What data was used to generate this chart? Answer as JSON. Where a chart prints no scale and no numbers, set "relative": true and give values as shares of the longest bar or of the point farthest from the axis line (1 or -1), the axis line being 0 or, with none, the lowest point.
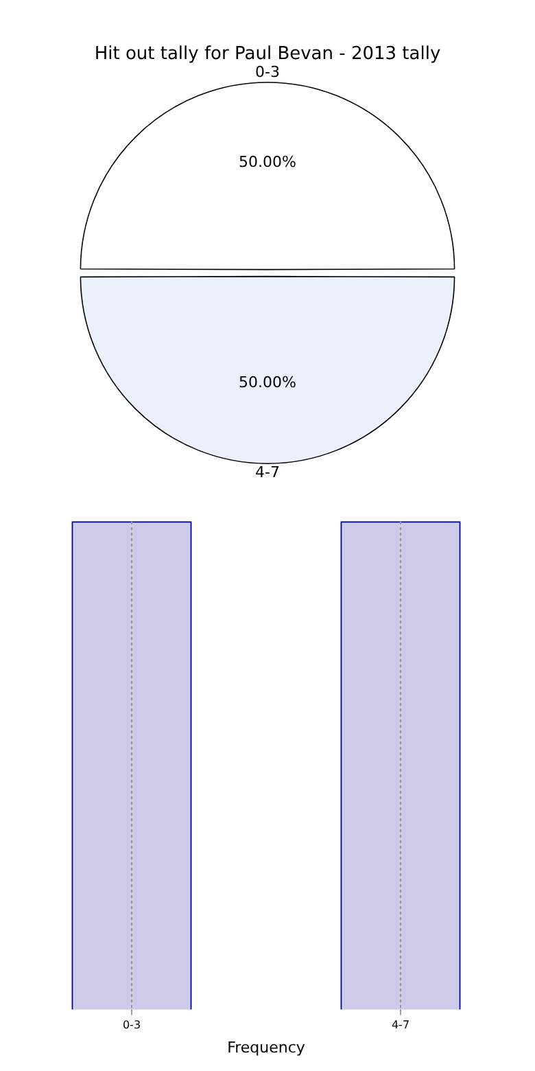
{
  "chart_data": [
    {
      "type": "pie",
      "title": "Hit out tally for Paul Bevan - 2013 tally",
      "categories": [
        "0-3",
        "4-7"
      ],
      "values": [
        50,
        50
      ],
      "value_labels": [
        "50.00%",
        "50.00%"
      ],
      "colors": [
        "#ffffff",
        "#ebf0fc"
      ],
      "legend": false
    },
    {
      "type": "bar",
      "categories": [
        "0-3",
        "4-7"
      ],
      "values": [
        1,
        1
      ],
      "relative": true,
      "color": "#ccccea",
      "xlabel": "Frequency",
      "grid": "x",
      "legend": false
    }
  ]
}
